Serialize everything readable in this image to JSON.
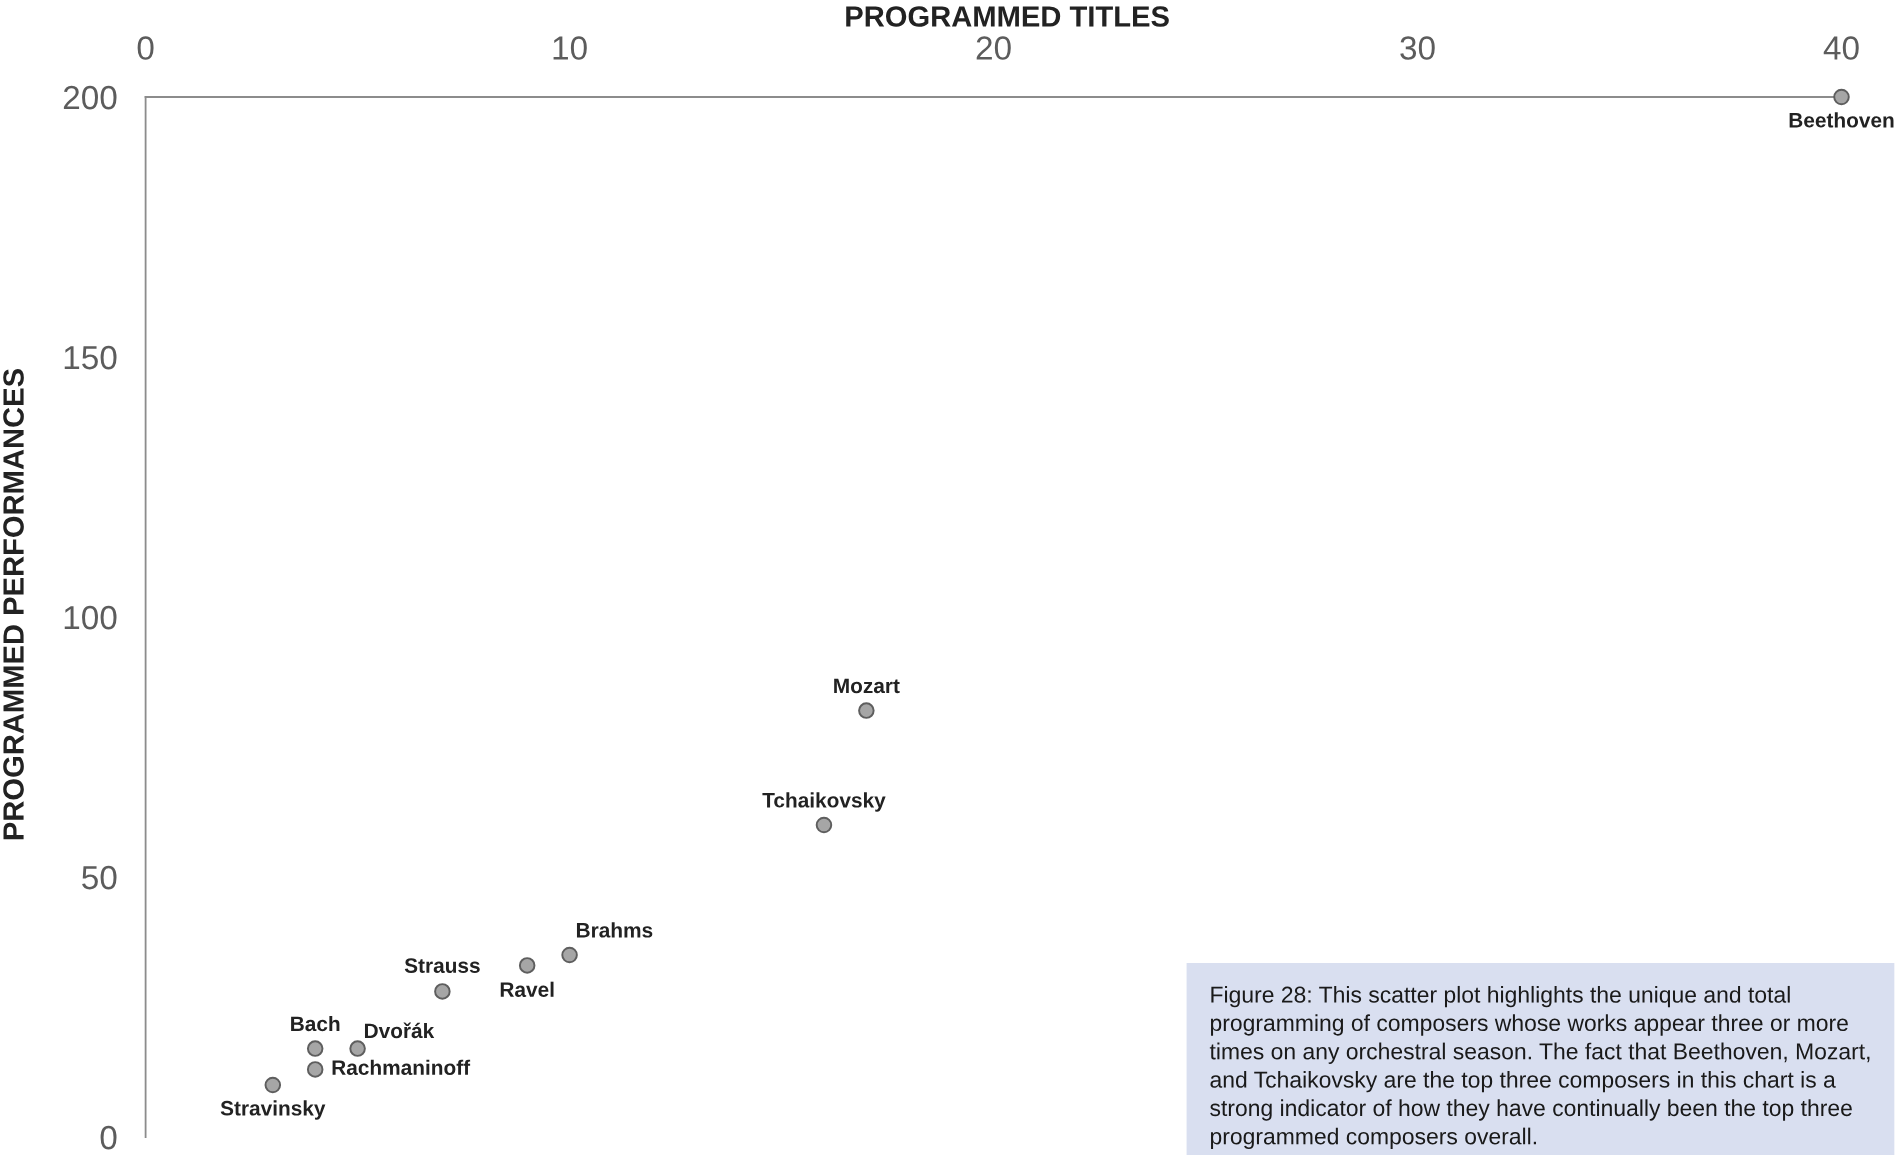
{
  "chart_data": {
    "type": "scatter",
    "xlabel": "PROGRAMMED TITLES",
    "ylabel": "PROGRAMMED PERFORMANCES",
    "series": [
      {
        "color": "#a6a6a6",
        "x": [
          40,
          17,
          16,
          10,
          9,
          7,
          4,
          5,
          4,
          3
        ],
        "values": [
          200,
          82,
          60,
          35,
          33,
          28,
          17,
          17,
          13,
          10
        ]
      }
    ],
    "xlim": [
      0,
      40
    ],
    "xticks": [
      0,
      10,
      20,
      30,
      40
    ],
    "ylim": [
      0,
      200
    ],
    "yticks": [
      0,
      50,
      100,
      150,
      200
    ],
    "grid": false,
    "marker": "circle",
    "annotations": [
      {
        "text": "Beethoven",
        "x": 40,
        "y": 200
      },
      {
        "text": "Mozart",
        "x": 17,
        "y": 82
      },
      {
        "text": "Tchaikovsky",
        "x": 16,
        "y": 60
      },
      {
        "text": "Brahms",
        "x": 10,
        "y": 35
      },
      {
        "text": "Ravel",
        "x": 9,
        "y": 33
      },
      {
        "text": "Strauss",
        "x": 7,
        "y": 28
      },
      {
        "text": "Bach",
        "x": 4,
        "y": 17
      },
      {
        "text": "Dvořák",
        "x": 5,
        "y": 17
      },
      {
        "text": "Rachmaninoff",
        "x": 4,
        "y": 13
      },
      {
        "text": "Stravinsky",
        "x": 3,
        "y": 10
      },
      "Figure 28: This scatter plot highlights the unique and total programming of composers whose works appear three or more times on any orchestral season. The fact that Beethoven, Mozart, and Tchaikovsky are the top three composers in this chart is a strong indicator of how they have continually been the top three programmed composers overall."
    ]
  }
}
